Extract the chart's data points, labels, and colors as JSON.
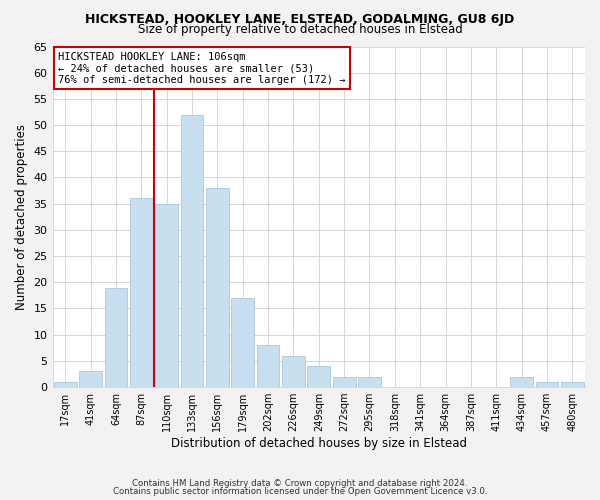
{
  "title": "HICKSTEAD, HOOKLEY LANE, ELSTEAD, GODALMING, GU8 6JD",
  "subtitle": "Size of property relative to detached houses in Elstead",
  "xlabel": "Distribution of detached houses by size in Elstead",
  "ylabel": "Number of detached properties",
  "categories": [
    "17sqm",
    "41sqm",
    "64sqm",
    "87sqm",
    "110sqm",
    "133sqm",
    "156sqm",
    "179sqm",
    "202sqm",
    "226sqm",
    "249sqm",
    "272sqm",
    "295sqm",
    "318sqm",
    "341sqm",
    "364sqm",
    "387sqm",
    "411sqm",
    "434sqm",
    "457sqm",
    "480sqm"
  ],
  "values": [
    1,
    3,
    19,
    36,
    35,
    52,
    38,
    17,
    8,
    6,
    4,
    2,
    2,
    0,
    0,
    0,
    0,
    0,
    2,
    1,
    1
  ],
  "bar_color": "#c8dff0",
  "bar_edge_color": "#a0c0dc",
  "vline_x_index": 4,
  "vline_color": "#cc0000",
  "ylim": [
    0,
    65
  ],
  "yticks": [
    0,
    5,
    10,
    15,
    20,
    25,
    30,
    35,
    40,
    45,
    50,
    55,
    60,
    65
  ],
  "annotation_title": "HICKSTEAD HOOKLEY LANE: 106sqm",
  "annotation_line1": "← 24% of detached houses are smaller (53)",
  "annotation_line2": "76% of semi-detached houses are larger (172) →",
  "annotation_box_color": "#ffffff",
  "annotation_box_edge": "#cc0000",
  "footer1": "Contains HM Land Registry data © Crown copyright and database right 2024.",
  "footer2": "Contains public sector information licensed under the Open Government Licence v3.0.",
  "background_color": "#f2f2f2",
  "plot_background": "#ffffff"
}
